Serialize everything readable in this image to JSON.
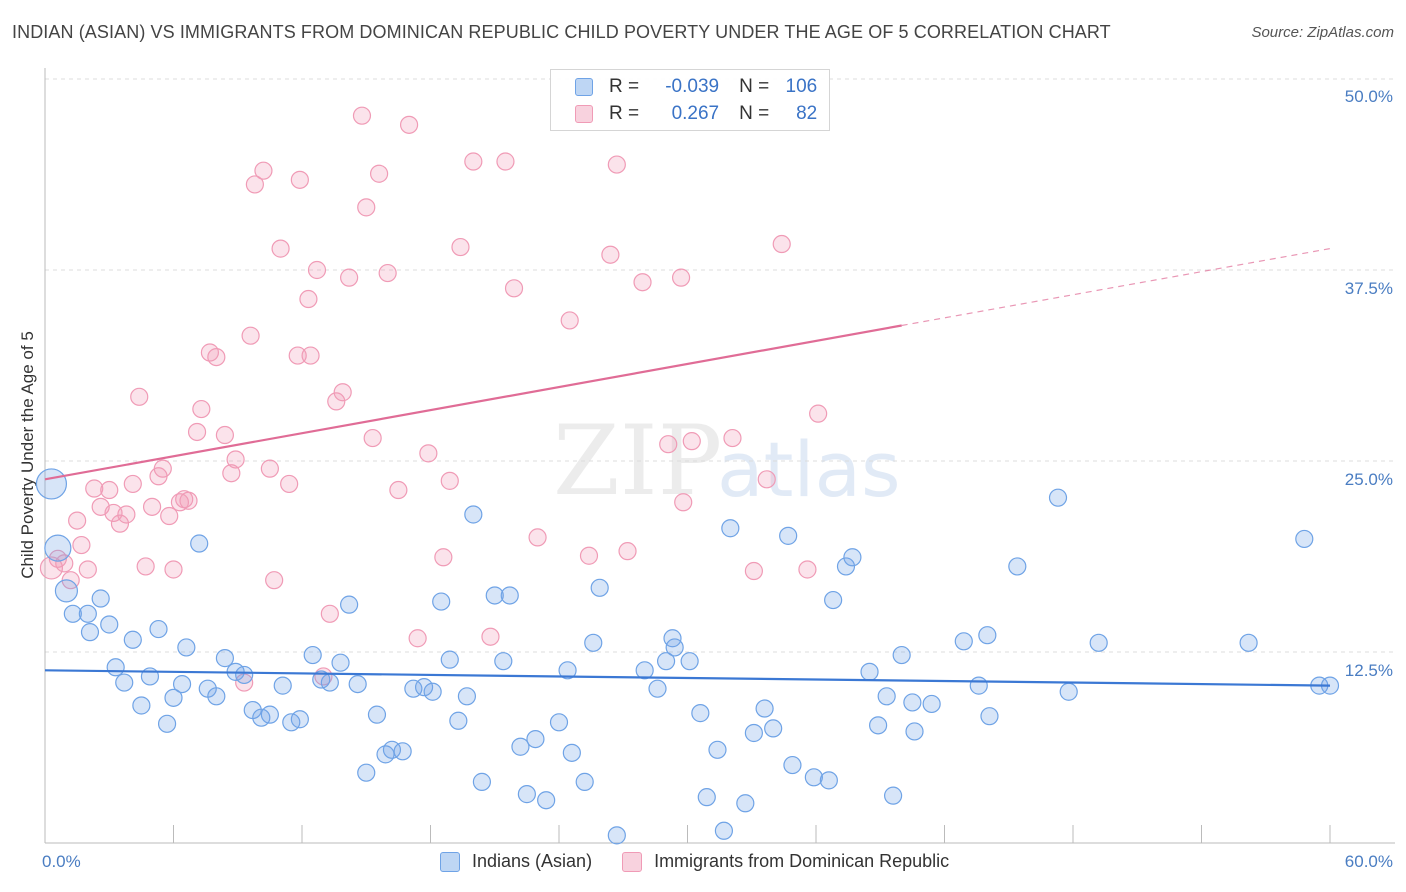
{
  "title": "INDIAN (ASIAN) VS IMMIGRANTS FROM DOMINICAN REPUBLIC CHILD POVERTY UNDER THE AGE OF 5 CORRELATION CHART",
  "source": "Source: ZipAtlas.com",
  "watermark": {
    "zip": "ZIP",
    "atlas": "atlas"
  },
  "legend_top": {
    "rows": [
      {
        "r_label": "R =",
        "r_value": "-0.039",
        "n_label": "N =",
        "n_value": "106",
        "color": "#6fa3e6"
      },
      {
        "r_label": "R =",
        "r_value": "0.267",
        "n_label": "N =",
        "n_value": "82",
        "color": "#f09bb6"
      }
    ]
  },
  "legend_bottom": {
    "items": [
      {
        "label": "Indians (Asian)",
        "color": "#6fa3e6"
      },
      {
        "label": "Immigrants from Dominican Republic",
        "color": "#f09bb6"
      }
    ]
  },
  "colors": {
    "blue": "#6fa3e6",
    "pink": "#f09bb6",
    "blue_line": "#3b78d4",
    "pink_line": "#e06c96",
    "tick_text": "#4a7dc2"
  },
  "chart_data": {
    "type": "scatter",
    "title": "INDIAN (ASIAN) VS IMMIGRANTS FROM DOMINICAN REPUBLIC CHILD POVERTY UNDER THE AGE OF 5 CORRELATION CHART",
    "xlabel": "",
    "ylabel": "Child Poverty Under the Age of 5",
    "xlim": [
      0,
      60
    ],
    "ylim": [
      0,
      50
    ],
    "x_tick_labels": [
      "0.0%",
      "60.0%"
    ],
    "y_ticks": [
      12.5,
      25.0,
      37.5,
      50.0
    ],
    "y_tick_labels": [
      "12.5%",
      "25.0%",
      "37.5%",
      "50.0%"
    ],
    "series": [
      {
        "name": "Indians (Asian)",
        "color": "#6fa3e6",
        "trend": {
          "x": [
            0,
            60
          ],
          "y": [
            11.3,
            10.3
          ],
          "dashed_from": null
        },
        "points": [
          [
            0.3,
            23.5
          ],
          [
            0.6,
            19.3
          ],
          [
            1.0,
            16.5
          ],
          [
            1.3,
            15.0
          ],
          [
            2.0,
            15.0
          ],
          [
            2.1,
            13.8
          ],
          [
            2.6,
            16.0
          ],
          [
            3.0,
            14.3
          ],
          [
            3.3,
            11.5
          ],
          [
            3.7,
            10.5
          ],
          [
            4.1,
            13.3
          ],
          [
            4.5,
            9.0
          ],
          [
            4.9,
            10.9
          ],
          [
            5.3,
            14.0
          ],
          [
            5.7,
            7.8
          ],
          [
            6.0,
            9.5
          ],
          [
            6.4,
            10.4
          ],
          [
            6.6,
            12.8
          ],
          [
            7.2,
            19.6
          ],
          [
            7.6,
            10.1
          ],
          [
            8.0,
            9.6
          ],
          [
            8.4,
            12.1
          ],
          [
            8.9,
            11.2
          ],
          [
            9.3,
            11.0
          ],
          [
            9.7,
            8.7
          ],
          [
            10.1,
            8.2
          ],
          [
            10.5,
            8.4
          ],
          [
            11.1,
            10.3
          ],
          [
            11.5,
            7.9
          ],
          [
            11.9,
            8.1
          ],
          [
            12.5,
            12.3
          ],
          [
            12.9,
            10.7
          ],
          [
            13.3,
            10.5
          ],
          [
            13.8,
            11.8
          ],
          [
            14.2,
            15.6
          ],
          [
            14.6,
            10.4
          ],
          [
            15.0,
            4.6
          ],
          [
            15.5,
            8.4
          ],
          [
            15.9,
            5.8
          ],
          [
            16.2,
            6.1
          ],
          [
            16.7,
            6.0
          ],
          [
            17.2,
            10.1
          ],
          [
            17.7,
            10.2
          ],
          [
            18.1,
            9.9
          ],
          [
            18.5,
            15.8
          ],
          [
            18.9,
            12.0
          ],
          [
            19.3,
            8.0
          ],
          [
            19.7,
            9.6
          ],
          [
            20.0,
            21.5
          ],
          [
            20.4,
            4.0
          ],
          [
            21.0,
            16.2
          ],
          [
            21.4,
            11.9
          ],
          [
            21.7,
            16.2
          ],
          [
            22.2,
            6.3
          ],
          [
            22.5,
            3.2
          ],
          [
            22.9,
            6.8
          ],
          [
            23.4,
            2.8
          ],
          [
            24.0,
            7.9
          ],
          [
            24.4,
            11.3
          ],
          [
            24.6,
            5.9
          ],
          [
            25.2,
            4.0
          ],
          [
            25.6,
            13.1
          ],
          [
            25.9,
            16.7
          ],
          [
            26.7,
            0.5
          ],
          [
            28.0,
            11.3
          ],
          [
            28.6,
            10.1
          ],
          [
            29.0,
            11.9
          ],
          [
            29.3,
            13.4
          ],
          [
            29.4,
            12.8
          ],
          [
            30.1,
            11.9
          ],
          [
            30.6,
            8.5
          ],
          [
            30.9,
            3.0
          ],
          [
            31.4,
            6.1
          ],
          [
            31.7,
            0.8
          ],
          [
            32.0,
            20.6
          ],
          [
            32.7,
            2.6
          ],
          [
            33.1,
            7.2
          ],
          [
            33.6,
            8.8
          ],
          [
            34.0,
            7.5
          ],
          [
            34.7,
            20.1
          ],
          [
            34.9,
            5.1
          ],
          [
            35.9,
            4.3
          ],
          [
            36.6,
            4.1
          ],
          [
            36.8,
            15.9
          ],
          [
            37.4,
            18.1
          ],
          [
            37.7,
            18.7
          ],
          [
            38.5,
            11.2
          ],
          [
            38.9,
            7.7
          ],
          [
            39.3,
            9.6
          ],
          [
            39.6,
            3.1
          ],
          [
            40.0,
            12.3
          ],
          [
            40.5,
            9.2
          ],
          [
            40.6,
            7.3
          ],
          [
            41.4,
            9.1
          ],
          [
            42.9,
            13.2
          ],
          [
            43.6,
            10.3
          ],
          [
            44.0,
            13.6
          ],
          [
            44.1,
            8.3
          ],
          [
            45.4,
            18.1
          ],
          [
            47.3,
            22.6
          ],
          [
            47.8,
            9.9
          ],
          [
            49.2,
            13.1
          ],
          [
            56.2,
            13.1
          ],
          [
            58.8,
            19.9
          ],
          [
            59.5,
            10.3
          ],
          [
            60.0,
            10.3
          ]
        ]
      },
      {
        "name": "Immigrants from Dominican Republic",
        "color": "#f09bb6",
        "trend": {
          "x": [
            0,
            60
          ],
          "y": [
            23.8,
            38.9
          ],
          "dashed_from": 40
        },
        "points": [
          [
            0.3,
            18.0
          ],
          [
            0.6,
            18.6
          ],
          [
            0.9,
            18.3
          ],
          [
            1.2,
            17.2
          ],
          [
            1.5,
            21.1
          ],
          [
            1.7,
            19.5
          ],
          [
            2.0,
            17.9
          ],
          [
            2.3,
            23.2
          ],
          [
            2.6,
            22.0
          ],
          [
            3.0,
            23.1
          ],
          [
            3.2,
            21.6
          ],
          [
            3.5,
            20.9
          ],
          [
            3.8,
            21.5
          ],
          [
            4.1,
            23.5
          ],
          [
            4.4,
            29.2
          ],
          [
            4.7,
            18.1
          ],
          [
            5.0,
            22.0
          ],
          [
            5.3,
            24.0
          ],
          [
            5.5,
            24.5
          ],
          [
            5.8,
            21.4
          ],
          [
            6.0,
            17.9
          ],
          [
            6.3,
            22.3
          ],
          [
            6.5,
            22.5
          ],
          [
            6.7,
            22.4
          ],
          [
            7.1,
            26.9
          ],
          [
            7.3,
            28.4
          ],
          [
            7.7,
            32.1
          ],
          [
            8.0,
            31.8
          ],
          [
            8.4,
            26.7
          ],
          [
            8.7,
            24.2
          ],
          [
            8.9,
            25.1
          ],
          [
            9.3,
            10.5
          ],
          [
            9.6,
            33.2
          ],
          [
            9.8,
            43.1
          ],
          [
            10.2,
            44.0
          ],
          [
            10.5,
            24.5
          ],
          [
            10.7,
            17.2
          ],
          [
            11.0,
            38.9
          ],
          [
            11.4,
            23.5
          ],
          [
            11.8,
            31.9
          ],
          [
            11.9,
            43.4
          ],
          [
            12.3,
            35.6
          ],
          [
            12.4,
            31.9
          ],
          [
            12.7,
            37.5
          ],
          [
            13.0,
            10.9
          ],
          [
            13.3,
            15.0
          ],
          [
            13.6,
            28.9
          ],
          [
            13.9,
            29.5
          ],
          [
            14.2,
            37.0
          ],
          [
            14.8,
            47.6
          ],
          [
            15.0,
            41.6
          ],
          [
            15.3,
            26.5
          ],
          [
            15.6,
            43.8
          ],
          [
            16.0,
            37.3
          ],
          [
            16.5,
            23.1
          ],
          [
            17.0,
            47.0
          ],
          [
            17.4,
            13.4
          ],
          [
            17.9,
            25.5
          ],
          [
            18.6,
            18.7
          ],
          [
            18.9,
            23.7
          ],
          [
            19.4,
            39.0
          ],
          [
            20.0,
            44.6
          ],
          [
            20.8,
            13.5
          ],
          [
            21.5,
            44.6
          ],
          [
            21.9,
            36.3
          ],
          [
            23.0,
            20.0
          ],
          [
            24.5,
            34.2
          ],
          [
            25.4,
            18.8
          ],
          [
            26.4,
            38.5
          ],
          [
            26.7,
            44.4
          ],
          [
            27.2,
            19.1
          ],
          [
            27.9,
            36.7
          ],
          [
            29.1,
            26.1
          ],
          [
            29.7,
            37.0
          ],
          [
            29.8,
            22.3
          ],
          [
            30.2,
            26.3
          ],
          [
            32.1,
            26.5
          ],
          [
            33.1,
            17.8
          ],
          [
            33.7,
            23.8
          ],
          [
            34.4,
            39.2
          ],
          [
            35.6,
            17.9
          ],
          [
            36.1,
            28.1
          ]
        ]
      }
    ]
  }
}
